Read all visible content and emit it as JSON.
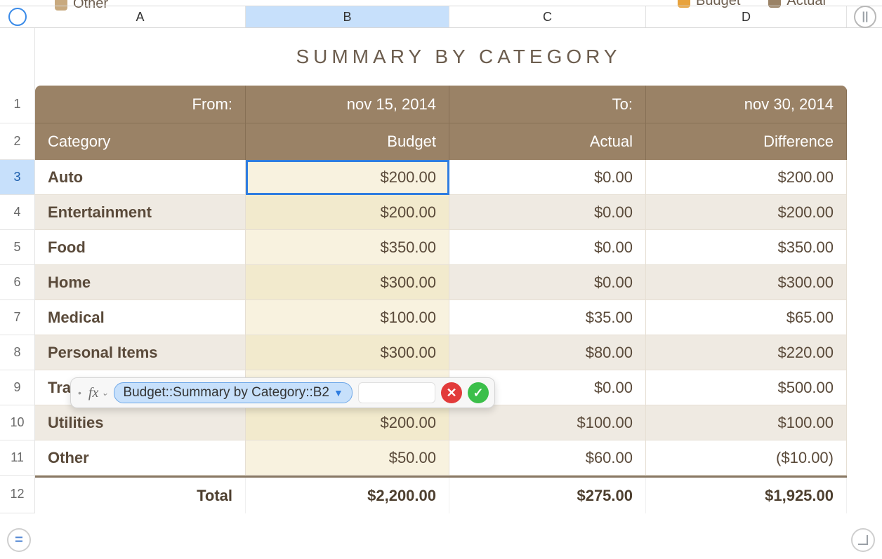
{
  "legend": {
    "left_label": "Other",
    "right_items": [
      {
        "label": "Budget",
        "color": "#e8a23c"
      },
      {
        "label": "Actual",
        "color": "#9a8266"
      }
    ]
  },
  "columns": {
    "a": "A",
    "b": "B",
    "c": "C",
    "d": "D",
    "selected": "B"
  },
  "title": "SUMMARY BY CATEGORY",
  "header1": {
    "from_label": "From:",
    "from_value": "nov 15, 2014",
    "to_label": "To:",
    "to_value": "nov 30, 2014"
  },
  "header2": {
    "category": "Category",
    "budget": "Budget",
    "actual": "Actual",
    "difference": "Difference"
  },
  "rows": [
    {
      "n": "3",
      "cat": "Auto",
      "budget": "$200.00",
      "actual": "$0.00",
      "diff": "$200.00",
      "neg": false
    },
    {
      "n": "4",
      "cat": "Entertainment",
      "budget": "$200.00",
      "actual": "$0.00",
      "diff": "$200.00",
      "neg": false
    },
    {
      "n": "5",
      "cat": "Food",
      "budget": "$350.00",
      "actual": "$0.00",
      "diff": "$350.00",
      "neg": false
    },
    {
      "n": "6",
      "cat": "Home",
      "budget": "$300.00",
      "actual": "$0.00",
      "diff": "$300.00",
      "neg": false
    },
    {
      "n": "7",
      "cat": "Medical",
      "budget": "$100.00",
      "actual": "$35.00",
      "diff": "$65.00",
      "neg": false
    },
    {
      "n": "8",
      "cat": "Personal Items",
      "budget": "$300.00",
      "actual": "$80.00",
      "diff": "$220.00",
      "neg": false
    },
    {
      "n": "9",
      "cat": "Tra",
      "budget": "",
      "actual": "$0.00",
      "diff": "$500.00",
      "neg": false
    },
    {
      "n": "10",
      "cat": "Utilities",
      "budget": "$200.00",
      "actual": "$100.00",
      "diff": "$100.00",
      "neg": false
    },
    {
      "n": "11",
      "cat": "Other",
      "budget": "$50.00",
      "actual": "$60.00",
      "diff": "($10.00)",
      "neg": true
    }
  ],
  "total": {
    "n": "12",
    "label": "Total",
    "budget": "$2,200.00",
    "actual": "$275.00",
    "diff": "$1,925.00"
  },
  "row_labels": {
    "r1": "1",
    "r2": "2"
  },
  "selected_cell": {
    "row": 3,
    "col": "B"
  },
  "formula_editor": {
    "fx_label": "fx",
    "reference": "Budget::Summary by Category::B2"
  },
  "style": {
    "header_bg": "#9a8266",
    "budget_col_bg": "#f2eacd",
    "budget_col_bg_alt": "#f8f2df",
    "row_bg": "#efeae2",
    "row_bg_alt": "#ffffff",
    "text_color": "#5a4a3a",
    "neg_color": "#e53935",
    "select_border": "#2f7de0",
    "colhdr_sel_bg": "#c7e0fb",
    "title_fontsize": 28,
    "cell_fontsize": 22
  },
  "buttons": {
    "equals": "=",
    "pause": "||"
  }
}
